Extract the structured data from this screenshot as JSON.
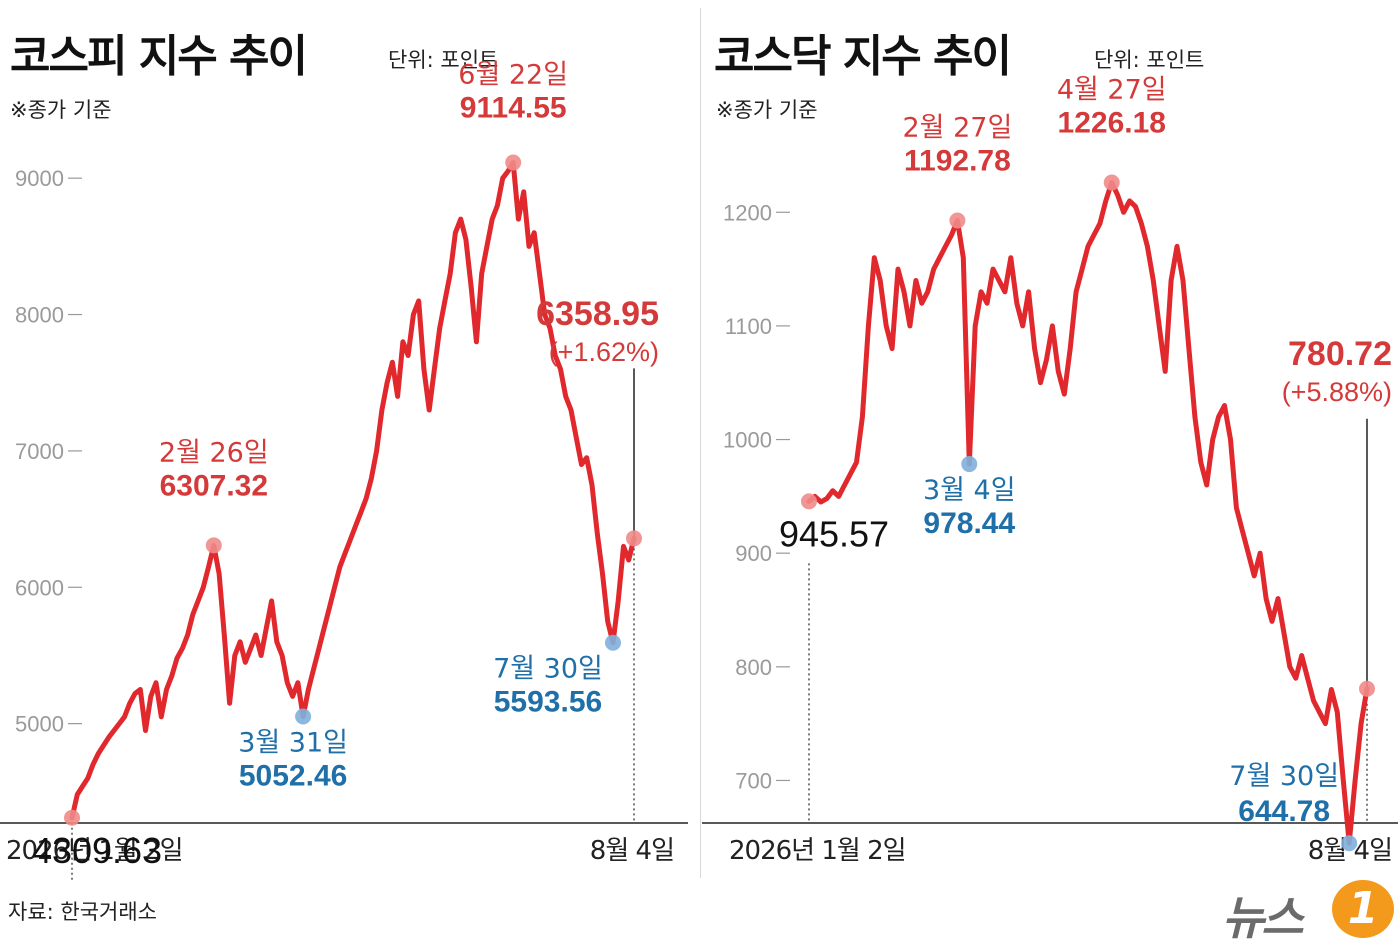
{
  "source": "자료: 한국거래소",
  "logo": {
    "text": "뉴스",
    "mark": "1"
  },
  "chart_data": [
    {
      "type": "line",
      "title": "코스피 지수 추이",
      "unit_label": "단위: 포인트",
      "note": "※종가 기준",
      "x_start_label": "2026년 1월 2일",
      "x_end_label": "8월 4일",
      "ylim": [
        4000,
        9500
      ],
      "yticks": [
        5000,
        6000,
        7000,
        8000,
        9000
      ],
      "color": "#e0282d",
      "values": [
        4309.63,
        4480,
        4540,
        4600,
        4700,
        4780,
        4840,
        4900,
        4950,
        5000,
        5050,
        5150,
        5220,
        5250,
        4950,
        5200,
        5300,
        5050,
        5250,
        5350,
        5480,
        5550,
        5650,
        5800,
        5900,
        6000,
        6150,
        6307.32,
        6100,
        5650,
        5150,
        5500,
        5600,
        5450,
        5550,
        5650,
        5500,
        5700,
        5900,
        5600,
        5500,
        5300,
        5200,
        5300,
        5052.46,
        5250,
        5400,
        5550,
        5700,
        5850,
        6000,
        6150,
        6250,
        6350,
        6450,
        6550,
        6650,
        6800,
        7000,
        7300,
        7500,
        7650,
        7400,
        7800,
        7700,
        8000,
        8100,
        7600,
        7300,
        7600,
        7900,
        8100,
        8300,
        8600,
        8700,
        8550,
        8200,
        7800,
        8300,
        8500,
        8700,
        8800,
        9000,
        9050,
        9114.55,
        8700,
        8900,
        8500,
        8600,
        8300,
        8000,
        7900,
        7700,
        7600,
        7400,
        7300,
        7100,
        6900,
        6950,
        6750,
        6400,
        6100,
        5750,
        5593.56,
        5900,
        6300,
        6200,
        6358.95
      ],
      "annotations": [
        {
          "idx": 0,
          "date": "",
          "value": "4309.63",
          "color": "#111111",
          "dot": "#f08a8a",
          "vline": true
        },
        {
          "idx": 27,
          "date": "2월 26일",
          "value": "6307.32",
          "color": "#d43a3a",
          "dot": "#f08a8a"
        },
        {
          "idx": 44,
          "date": "3월 31일",
          "value": "5052.46",
          "color": "#1f6fa8",
          "dot": "#7fb0dc"
        },
        {
          "idx": 84,
          "date": "6월 22일",
          "value": "9114.55",
          "color": "#d43a3a",
          "dot": "#f08a8a"
        },
        {
          "idx": 103,
          "date": "7월 30일",
          "value": "5593.56",
          "color": "#1f6fa8",
          "dot": "#7fb0dc"
        },
        {
          "idx": 107,
          "date": "",
          "value": "6358.95",
          "change": "(+1.62%)",
          "color": "#d43a3a",
          "dot": "#f08a8a",
          "vline": true
        }
      ]
    },
    {
      "type": "line",
      "title": "코스닥 지수 추이",
      "unit_label": "단위: 포인트",
      "note": "※종가 기준",
      "x_start_label": "2026년 1월 2일",
      "x_end_label": "8월 4일",
      "ylim": [
        630,
        1290
      ],
      "yticks": [
        700,
        800,
        900,
        1000,
        1100,
        1200
      ],
      "color": "#e0282d",
      "values": [
        945.57,
        950,
        945,
        948,
        955,
        950,
        960,
        970,
        980,
        1020,
        1100,
        1160,
        1140,
        1100,
        1080,
        1150,
        1130,
        1100,
        1140,
        1120,
        1130,
        1150,
        1160,
        1170,
        1180,
        1192.78,
        1160,
        978.44,
        1100,
        1130,
        1120,
        1150,
        1140,
        1130,
        1160,
        1120,
        1100,
        1130,
        1080,
        1050,
        1070,
        1100,
        1060,
        1040,
        1080,
        1130,
        1150,
        1170,
        1180,
        1190,
        1210,
        1226.18,
        1215,
        1200,
        1210,
        1205,
        1190,
        1170,
        1140,
        1100,
        1060,
        1140,
        1170,
        1140,
        1080,
        1020,
        980,
        960,
        1000,
        1020,
        1030,
        1000,
        940,
        920,
        900,
        880,
        900,
        860,
        840,
        860,
        830,
        800,
        790,
        810,
        790,
        770,
        760,
        750,
        780,
        760,
        700,
        644.78,
        700,
        750,
        780.72
      ],
      "annotations": [
        {
          "idx": 0,
          "date": "",
          "value": "945.57",
          "color": "#111111",
          "dot": "#f08a8a",
          "vline": true
        },
        {
          "idx": 25,
          "date": "2월 27일",
          "value": "1192.78",
          "color": "#d43a3a",
          "dot": "#f08a8a"
        },
        {
          "idx": 27,
          "date": "3월 4일",
          "value": "978.44",
          "color": "#1f6fa8",
          "dot": "#7fb0dc"
        },
        {
          "idx": 51,
          "date": "4월 27일",
          "value": "1226.18",
          "color": "#d43a3a",
          "dot": "#f08a8a"
        },
        {
          "idx": 91,
          "date": "7월 30일",
          "value": "644.78",
          "color": "#1f6fa8",
          "dot": "#7fb0dc"
        },
        {
          "idx": 94,
          "date": "",
          "value": "780.72",
          "change": "(+5.88%)",
          "color": "#d43a3a",
          "dot": "#f08a8a",
          "vline": true
        }
      ]
    }
  ]
}
